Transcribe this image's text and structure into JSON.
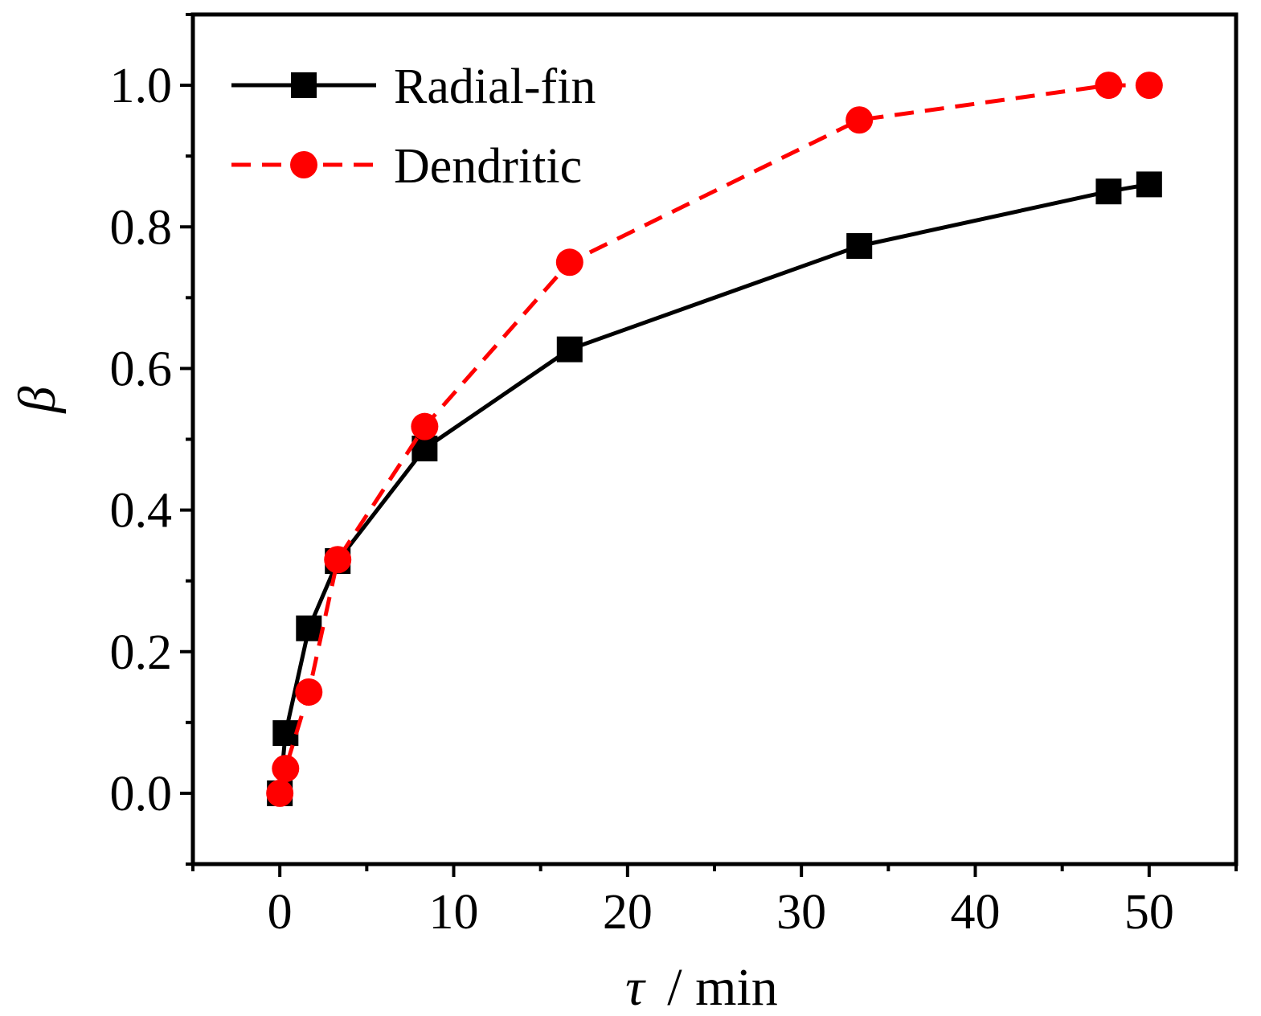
{
  "chart_data": {
    "type": "line",
    "title": "",
    "xlabel_symbol": "τ",
    "xlabel_unit": "/ min",
    "ylabel": "β",
    "xlim": [
      -5,
      55
    ],
    "ylim": [
      -0.1,
      1.1
    ],
    "x_ticks": [
      0,
      10,
      20,
      30,
      40,
      50
    ],
    "x_tick_labels": [
      "0",
      "10",
      "20",
      "30",
      "40",
      "50"
    ],
    "x_minor_ticks": [
      -5,
      5,
      15,
      25,
      35,
      45,
      55
    ],
    "y_ticks": [
      0.0,
      0.2,
      0.4,
      0.6,
      0.8,
      1.0
    ],
    "y_tick_labels": [
      "0.0",
      "0.2",
      "0.4",
      "0.6",
      "0.8",
      "1.0"
    ],
    "y_minor_ticks": [
      -0.1,
      0.1,
      0.3,
      0.5,
      0.7,
      0.9,
      1.1
    ],
    "grid": false,
    "legend_position": "top-left",
    "series": [
      {
        "name": "Radial-fin",
        "color": "#000000",
        "marker": "square",
        "line_style": "solid",
        "x": [
          0,
          0.33,
          1.67,
          3.33,
          8.33,
          16.67,
          33.33,
          47.67,
          50
        ],
        "y": [
          0.0,
          0.085,
          0.233,
          0.328,
          0.487,
          0.627,
          0.773,
          0.85,
          0.86
        ]
      },
      {
        "name": "Dendritic",
        "color": "#ff0000",
        "marker": "circle",
        "line_style": "dashed",
        "x": [
          0,
          0.33,
          1.67,
          3.33,
          8.33,
          16.67,
          33.33,
          47.67,
          50
        ],
        "y": [
          0.0,
          0.035,
          0.143,
          0.33,
          0.518,
          0.75,
          0.951,
          1.0,
          1.0
        ]
      }
    ]
  }
}
